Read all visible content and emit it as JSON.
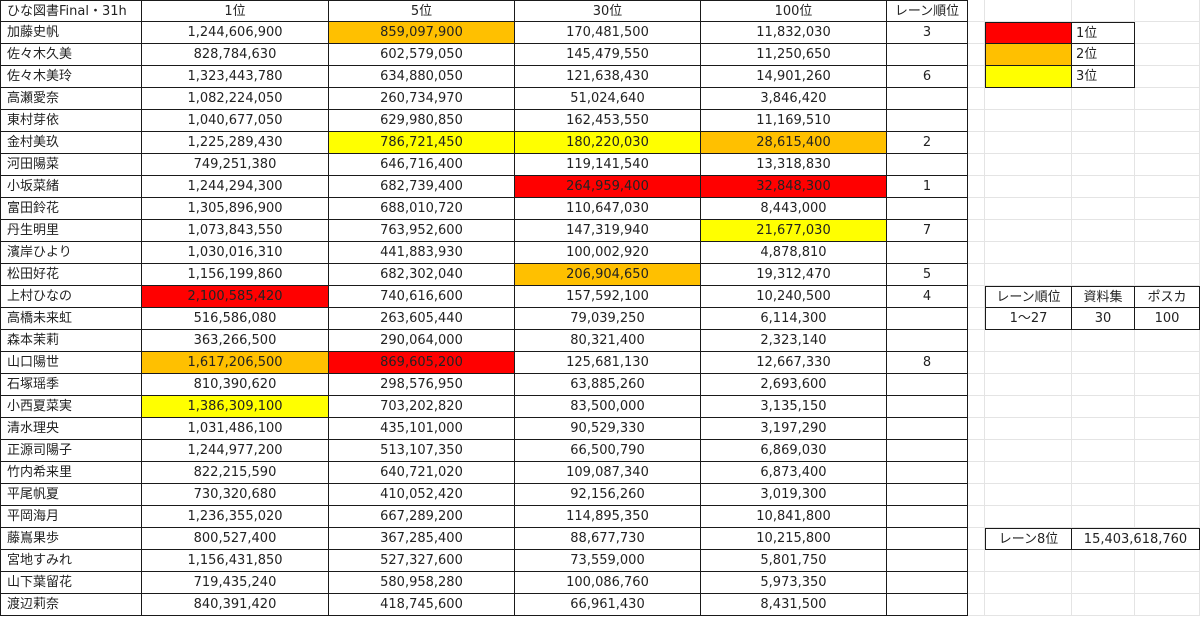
{
  "title": "ひな図書Final・31h",
  "headers": [
    "1位",
    "5位",
    "30位",
    "100位",
    "レーン順位"
  ],
  "rows": [
    {
      "name": "加藤史帆",
      "values": [
        "1,244,606,900",
        "859,097,900",
        "170,481,500",
        "11,832,030"
      ],
      "lane": "3",
      "marks": [
        0,
        2,
        0,
        0
      ]
    },
    {
      "name": "佐々木久美",
      "values": [
        "828,784,630",
        "602,579,050",
        "145,479,550",
        "11,250,650"
      ],
      "lane": "",
      "marks": [
        0,
        0,
        0,
        0
      ]
    },
    {
      "name": "佐々木美玲",
      "values": [
        "1,323,443,780",
        "634,880,050",
        "121,638,430",
        "14,901,260"
      ],
      "lane": "6",
      "marks": [
        0,
        0,
        0,
        0
      ]
    },
    {
      "name": "高瀬愛奈",
      "values": [
        "1,082,224,050",
        "260,734,970",
        "51,024,640",
        "3,846,420"
      ],
      "lane": "",
      "marks": [
        0,
        0,
        0,
        0
      ]
    },
    {
      "name": "東村芽依",
      "values": [
        "1,040,677,050",
        "629,980,850",
        "162,453,550",
        "11,169,510"
      ],
      "lane": "",
      "marks": [
        0,
        0,
        0,
        0
      ]
    },
    {
      "name": "金村美玖",
      "values": [
        "1,225,289,430",
        "786,721,450",
        "180,220,030",
        "28,615,400"
      ],
      "lane": "2",
      "marks": [
        0,
        3,
        3,
        2
      ]
    },
    {
      "name": "河田陽菜",
      "values": [
        "749,251,380",
        "646,716,400",
        "119,141,540",
        "13,318,830"
      ],
      "lane": "",
      "marks": [
        0,
        0,
        0,
        0
      ]
    },
    {
      "name": "小坂菜緒",
      "values": [
        "1,244,294,300",
        "682,739,400",
        "264,959,400",
        "32,848,300"
      ],
      "lane": "1",
      "marks": [
        0,
        0,
        1,
        1
      ]
    },
    {
      "name": "富田鈴花",
      "values": [
        "1,305,896,900",
        "688,010,720",
        "110,647,030",
        "8,443,000"
      ],
      "lane": "",
      "marks": [
        0,
        0,
        0,
        0
      ]
    },
    {
      "name": "丹生明里",
      "values": [
        "1,073,843,550",
        "763,952,600",
        "147,319,940",
        "21,677,030"
      ],
      "lane": "7",
      "marks": [
        0,
        0,
        0,
        3
      ]
    },
    {
      "name": "濱岸ひより",
      "values": [
        "1,030,016,310",
        "441,883,930",
        "100,002,920",
        "4,878,810"
      ],
      "lane": "",
      "marks": [
        0,
        0,
        0,
        0
      ]
    },
    {
      "name": "松田好花",
      "values": [
        "1,156,199,860",
        "682,302,040",
        "206,904,650",
        "19,312,470"
      ],
      "lane": "5",
      "marks": [
        0,
        0,
        2,
        0
      ]
    },
    {
      "name": "上村ひなの",
      "values": [
        "2,100,585,420",
        "740,616,600",
        "157,592,100",
        "10,240,500"
      ],
      "lane": "4",
      "marks": [
        1,
        0,
        0,
        0
      ]
    },
    {
      "name": "高橋未来虹",
      "values": [
        "516,586,080",
        "263,605,440",
        "79,039,250",
        "6,114,300"
      ],
      "lane": "",
      "marks": [
        0,
        0,
        0,
        0
      ]
    },
    {
      "name": "森本茉莉",
      "values": [
        "363,266,500",
        "290,064,000",
        "80,321,400",
        "2,323,140"
      ],
      "lane": "",
      "marks": [
        0,
        0,
        0,
        0
      ]
    },
    {
      "name": "山口陽世",
      "values": [
        "1,617,206,500",
        "869,605,200",
        "125,681,130",
        "12,667,330"
      ],
      "lane": "8",
      "marks": [
        2,
        1,
        0,
        0
      ]
    },
    {
      "name": "石塚瑶季",
      "values": [
        "810,390,620",
        "298,576,950",
        "63,885,260",
        "2,693,600"
      ],
      "lane": "",
      "marks": [
        0,
        0,
        0,
        0
      ]
    },
    {
      "name": "小西夏菜実",
      "values": [
        "1,386,309,100",
        "703,202,820",
        "83,500,000",
        "3,135,150"
      ],
      "lane": "",
      "marks": [
        3,
        0,
        0,
        0
      ]
    },
    {
      "name": "清水理央",
      "values": [
        "1,031,486,100",
        "435,101,000",
        "90,529,330",
        "3,197,290"
      ],
      "lane": "",
      "marks": [
        0,
        0,
        0,
        0
      ]
    },
    {
      "name": "正源司陽子",
      "values": [
        "1,244,977,200",
        "513,107,350",
        "66,500,790",
        "6,869,030"
      ],
      "lane": "",
      "marks": [
        0,
        0,
        0,
        0
      ]
    },
    {
      "name": "竹内希来里",
      "values": [
        "822,215,590",
        "640,721,020",
        "109,087,340",
        "6,873,400"
      ],
      "lane": "",
      "marks": [
        0,
        0,
        0,
        0
      ]
    },
    {
      "name": "平尾帆夏",
      "values": [
        "730,320,680",
        "410,052,420",
        "92,156,260",
        "3,019,300"
      ],
      "lane": "",
      "marks": [
        0,
        0,
        0,
        0
      ]
    },
    {
      "name": "平岡海月",
      "values": [
        "1,236,355,020",
        "667,289,200",
        "114,895,350",
        "10,841,800"
      ],
      "lane": "",
      "marks": [
        0,
        0,
        0,
        0
      ]
    },
    {
      "name": "藤嶌果歩",
      "values": [
        "800,527,400",
        "367,285,400",
        "88,677,730",
        "10,215,800"
      ],
      "lane": "",
      "marks": [
        0,
        0,
        0,
        0
      ]
    },
    {
      "name": "宮地すみれ",
      "values": [
        "1,156,431,850",
        "527,327,600",
        "73,559,000",
        "5,801,750"
      ],
      "lane": "",
      "marks": [
        0,
        0,
        0,
        0
      ]
    },
    {
      "name": "山下葉留花",
      "values": [
        "719,435,240",
        "580,958,280",
        "100,086,760",
        "5,973,350"
      ],
      "lane": "",
      "marks": [
        0,
        0,
        0,
        0
      ]
    },
    {
      "name": "渡辺莉奈",
      "values": [
        "840,391,420",
        "418,745,600",
        "66,961,430",
        "8,431,500"
      ],
      "lane": "",
      "marks": [
        0,
        0,
        0,
        0
      ]
    }
  ],
  "legend": [
    {
      "label": "1位",
      "color": "#ff0000"
    },
    {
      "label": "2位",
      "color": "#ffc000"
    },
    {
      "label": "3位",
      "color": "#ffff00"
    }
  ],
  "colors": {
    "rank1": "#ff0000",
    "rank2": "#ffc000",
    "rank3": "#ffff00"
  },
  "info_table": {
    "headers": [
      "レーン順位",
      "資料集",
      "ポスカ"
    ],
    "values": [
      "1～27",
      "30",
      "100"
    ]
  },
  "lane8": {
    "label": "レーン8位",
    "value": "15,403,618,760"
  }
}
